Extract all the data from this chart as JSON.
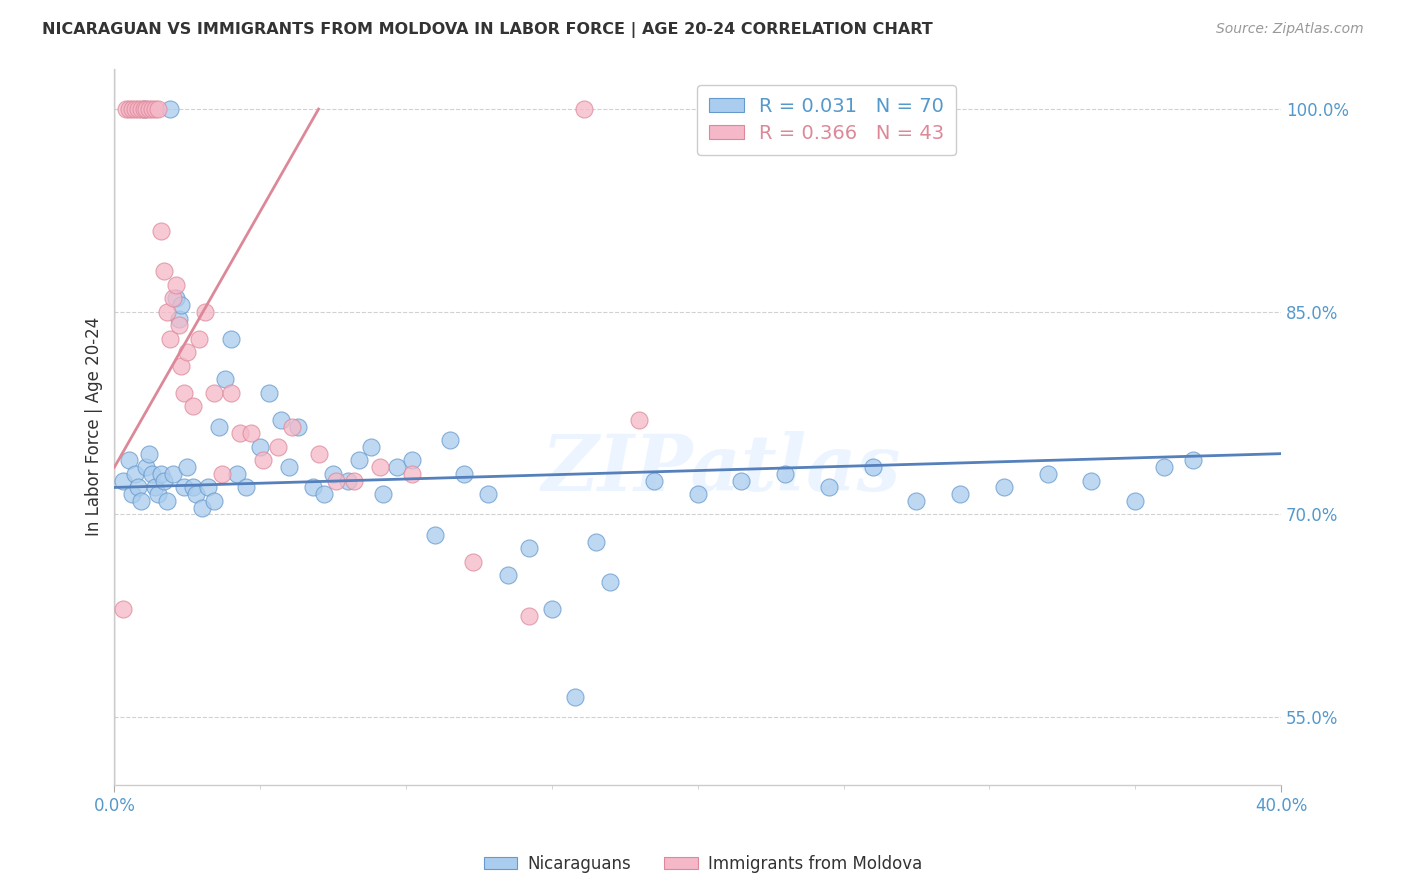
{
  "title": "NICARAGUAN VS IMMIGRANTS FROM MOLDOVA IN LABOR FORCE | AGE 20-24 CORRELATION CHART",
  "source": "Source: ZipAtlas.com",
  "ylabel": "In Labor Force | Age 20-24",
  "xmin": 0.0,
  "xmax": 40.0,
  "ymin": 50.0,
  "ymax": 103.0,
  "watermark": "ZIPatlas",
  "blue_scatter_x": [
    0.3,
    0.5,
    0.6,
    0.7,
    0.8,
    0.9,
    1.0,
    1.1,
    1.2,
    1.3,
    1.4,
    1.5,
    1.6,
    1.7,
    1.8,
    1.9,
    2.0,
    2.1,
    2.2,
    2.3,
    2.4,
    2.5,
    2.7,
    2.8,
    3.0,
    3.2,
    3.4,
    3.6,
    3.8,
    4.0,
    4.2,
    4.5,
    5.0,
    5.3,
    5.7,
    6.0,
    6.3,
    6.8,
    7.2,
    7.5,
    8.0,
    8.4,
    8.8,
    9.2,
    9.7,
    10.2,
    11.0,
    11.5,
    12.0,
    12.8,
    13.5,
    14.2,
    15.0,
    15.8,
    16.5,
    17.0,
    18.5,
    20.0,
    21.5,
    23.0,
    24.5,
    26.0,
    27.5,
    29.0,
    30.5,
    32.0,
    33.5,
    35.0,
    36.0,
    37.0
  ],
  "blue_scatter_y": [
    72.5,
    74.0,
    71.5,
    73.0,
    72.0,
    71.0,
    100.0,
    73.5,
    74.5,
    73.0,
    72.0,
    71.5,
    73.0,
    72.5,
    71.0,
    100.0,
    73.0,
    86.0,
    84.5,
    85.5,
    72.0,
    73.5,
    72.0,
    71.5,
    70.5,
    72.0,
    71.0,
    76.5,
    80.0,
    83.0,
    73.0,
    72.0,
    75.0,
    79.0,
    77.0,
    73.5,
    76.5,
    72.0,
    71.5,
    73.0,
    72.5,
    74.0,
    75.0,
    71.5,
    73.5,
    74.0,
    68.5,
    75.5,
    73.0,
    71.5,
    65.5,
    67.5,
    63.0,
    56.5,
    68.0,
    65.0,
    72.5,
    71.5,
    72.5,
    73.0,
    72.0,
    73.5,
    71.0,
    71.5,
    72.0,
    73.0,
    72.5,
    71.0,
    73.5,
    74.0
  ],
  "pink_scatter_x": [
    0.3,
    0.4,
    0.5,
    0.6,
    0.7,
    0.8,
    0.9,
    1.0,
    1.1,
    1.2,
    1.3,
    1.4,
    1.5,
    1.6,
    1.7,
    1.8,
    1.9,
    2.0,
    2.1,
    2.2,
    2.3,
    2.4,
    2.5,
    2.7,
    2.9,
    3.1,
    3.4,
    3.7,
    4.0,
    4.3,
    4.7,
    5.1,
    5.6,
    6.1,
    7.0,
    7.6,
    8.2,
    9.1,
    10.2,
    12.3,
    14.2,
    16.1,
    18.0
  ],
  "pink_scatter_y": [
    63.0,
    100.0,
    100.0,
    100.0,
    100.0,
    100.0,
    100.0,
    100.0,
    100.0,
    100.0,
    100.0,
    100.0,
    100.0,
    91.0,
    88.0,
    85.0,
    83.0,
    86.0,
    87.0,
    84.0,
    81.0,
    79.0,
    82.0,
    78.0,
    83.0,
    85.0,
    79.0,
    73.0,
    79.0,
    76.0,
    76.0,
    74.0,
    75.0,
    76.5,
    74.5,
    72.5,
    72.5,
    73.5,
    73.0,
    66.5,
    62.5,
    100.0,
    77.0
  ],
  "blue_line_x": [
    0.0,
    40.0
  ],
  "blue_line_y": [
    72.0,
    74.5
  ],
  "pink_line_x": [
    0.0,
    7.0
  ],
  "pink_line_y": [
    73.5,
    100.0
  ],
  "blue_color": "#aaccee",
  "blue_edge": "#6699cc",
  "pink_color": "#f5b8c8",
  "pink_edge": "#dd8899",
  "blue_line_color": "#5580bb",
  "pink_line_color": "#dd8899",
  "background_color": "#ffffff",
  "grid_color": "#cccccc",
  "legend_r_blue": "R = 0.031",
  "legend_n_blue": "N = 70",
  "legend_r_pink": "R = 0.366",
  "legend_n_pink": "N = 43",
  "legend_label_blue": "Nicaraguans",
  "legend_label_pink": "Immigrants from Moldova",
  "ytick_vals": [
    55.0,
    70.0,
    85.0,
    100.0
  ],
  "ytick_labels": [
    "55.0%",
    "70.0%",
    "85.0%",
    "100.0%"
  ],
  "xtick_vals": [
    0.0,
    40.0
  ],
  "xtick_labels": [
    "0.0%",
    "40.0%"
  ]
}
